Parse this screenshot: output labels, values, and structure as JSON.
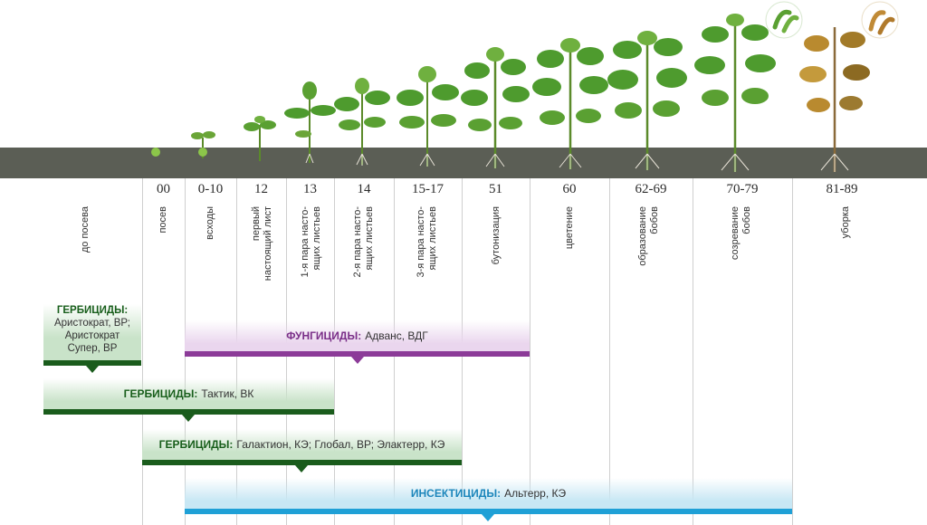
{
  "stages": [
    {
      "code": "",
      "label": "до посева"
    },
    {
      "code": "00",
      "label": "посев"
    },
    {
      "code": "0-10",
      "label": "всходы"
    },
    {
      "code": "12",
      "label": "первый настоящий лист"
    },
    {
      "code": "13",
      "label": "1-я пара насто-ящих листьев"
    },
    {
      "code": "14",
      "label": "2-я пара насто-ящих листьев"
    },
    {
      "code": "15-17",
      "label": "3-я пара насто-ящих листьев"
    },
    {
      "code": "51",
      "label": "бутонизация"
    },
    {
      "code": "60",
      "label": "цветение"
    },
    {
      "code": "62-69",
      "label": "образование бобов"
    },
    {
      "code": "70-79",
      "label": "созревание бобов"
    },
    {
      "code": "81-89",
      "label": "уборка"
    }
  ],
  "treatments": {
    "herb1": {
      "kind": "ГЕРБИЦИДЫ:",
      "line1": "Аристократ, ВР;",
      "line2": "Аристократ",
      "line3": "Супер, ВР"
    },
    "fung": {
      "kind": "ФУНГИЦИДЫ:",
      "products": "Адванс, ВДГ"
    },
    "herb2": {
      "kind": "ГЕРБИЦИДЫ:",
      "products": "Тактик, ВК"
    },
    "herb3": {
      "kind": "ГЕРБИЦИДЫ:",
      "products": "Галактион, КЭ; Глобал, ВР; Элактерр, КЭ"
    },
    "ins": {
      "kind": "ИНСЕКТИЦИДЫ:",
      "products": "Альтерр, КЭ"
    }
  },
  "colors": {
    "soil": "#5b5e55",
    "herbicide": "#1a5c1c",
    "fungicide": "#8c3b98",
    "insecticide": "#1fa0d6",
    "leaf": "#4e9b2e",
    "leaf_dry": "#b98a2f"
  }
}
